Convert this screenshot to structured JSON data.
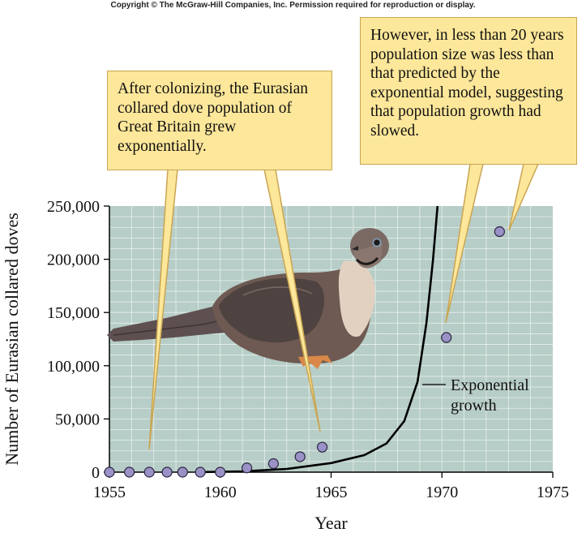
{
  "copyright": "Copyright © The McGraw-Hill Companies, Inc. Permission required for reproduction or display.",
  "callouts": {
    "left": "After colonizing, the Eurasian collared dove population of Great Britain grew exponentially.",
    "right": "However, in less than 20 years population size was less than that predicted by the exponential model, suggesting that population growth had slowed."
  },
  "colors": {
    "plot_background": "#b7cdc7",
    "grid": "#e8f0ee",
    "points": "#9a92c6",
    "curve": "#000000",
    "callout_fill": "#fde79a"
  },
  "chart_data": {
    "type": "scatter",
    "xlabel": "Year",
    "ylabel": "Number of Eurasian collared doves",
    "xlim": [
      1955,
      1975
    ],
    "ylim": [
      0,
      250000
    ],
    "x_ticks": [
      1955,
      1960,
      1965,
      1970,
      1975
    ],
    "y_ticks": [
      0,
      50000,
      100000,
      150000,
      200000,
      250000
    ],
    "y_tick_labels": [
      "0",
      "50,000",
      "100,000",
      "150,000",
      "200,000",
      "250,000"
    ],
    "grid": true,
    "series": [
      {
        "type": "scatter",
        "points": [
          {
            "x": 1955,
            "y": 0
          },
          {
            "x": 1955.9,
            "y": 0
          },
          {
            "x": 1956.8,
            "y": 0
          },
          {
            "x": 1957.6,
            "y": 0
          },
          {
            "x": 1958.3,
            "y": 0
          },
          {
            "x": 1959.1,
            "y": 0
          },
          {
            "x": 1960,
            "y": 0
          },
          {
            "x": 1961.2,
            "y": 4000
          },
          {
            "x": 1962.4,
            "y": 8000
          },
          {
            "x": 1963.6,
            "y": 14500
          },
          {
            "x": 1964.6,
            "y": 23500
          },
          {
            "x": 1970.2,
            "y": 126500
          },
          {
            "x": 1972.6,
            "y": 226000
          }
        ]
      },
      {
        "type": "line",
        "label": "Exponential growth",
        "points": [
          {
            "x": 1959,
            "y": 0
          },
          {
            "x": 1961,
            "y": 800
          },
          {
            "x": 1963,
            "y": 3000
          },
          {
            "x": 1965,
            "y": 8500
          },
          {
            "x": 1966.5,
            "y": 16000
          },
          {
            "x": 1967.5,
            "y": 27000
          },
          {
            "x": 1968.3,
            "y": 48000
          },
          {
            "x": 1968.9,
            "y": 85000
          },
          {
            "x": 1969.3,
            "y": 140000
          },
          {
            "x": 1969.6,
            "y": 200000
          },
          {
            "x": 1969.8,
            "y": 250000
          }
        ]
      }
    ],
    "annotations": [
      "Exponential",
      "growth"
    ]
  }
}
